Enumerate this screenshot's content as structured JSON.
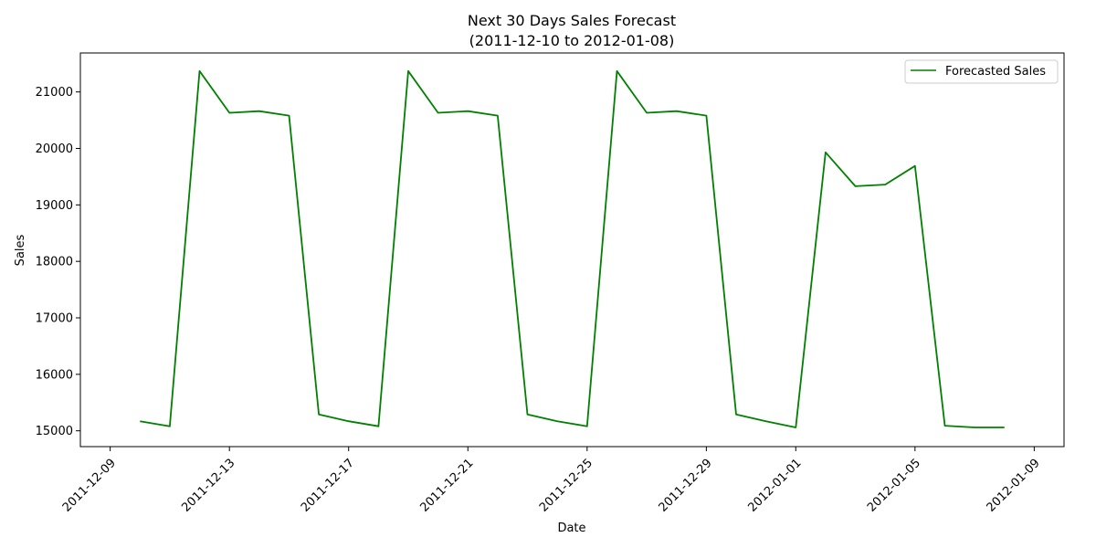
{
  "chart_data": {
    "type": "line",
    "title": "Next 30 Days Sales Forecast",
    "subtitle": "(2011-12-10 to 2012-01-08)",
    "xlabel": "Date",
    "ylabel": "Sales",
    "x_type": "date",
    "xlim": [
      "2011-12-08",
      "2012-01-10"
    ],
    "ylim": [
      14720,
      21690
    ],
    "x_ticks": [
      "2011-12-09",
      "2011-12-13",
      "2011-12-17",
      "2011-12-21",
      "2011-12-25",
      "2011-12-29",
      "2012-01-01",
      "2012-01-05",
      "2012-01-09"
    ],
    "y_ticks": [
      15000,
      16000,
      17000,
      18000,
      19000,
      20000,
      21000
    ],
    "grid": false,
    "legend_position": "top-right",
    "series": [
      {
        "name": "Forecasted Sales",
        "color": "#008000",
        "x": [
          "2011-12-10",
          "2011-12-11",
          "2011-12-12",
          "2011-12-13",
          "2011-12-14",
          "2011-12-15",
          "2011-12-16",
          "2011-12-17",
          "2011-12-18",
          "2011-12-19",
          "2011-12-20",
          "2011-12-21",
          "2011-12-22",
          "2011-12-23",
          "2011-12-24",
          "2011-12-25",
          "2011-12-26",
          "2011-12-27",
          "2011-12-28",
          "2011-12-29",
          "2011-12-30",
          "2011-12-31",
          "2012-01-01",
          "2012-01-02",
          "2012-01-03",
          "2012-01-04",
          "2012-01-05",
          "2012-01-06",
          "2012-01-07",
          "2012-01-08"
        ],
        "values": [
          15170,
          15080,
          21370,
          20630,
          20660,
          20580,
          15290,
          15170,
          15080,
          21370,
          20630,
          20660,
          20580,
          15290,
          15170,
          15080,
          21370,
          20630,
          20660,
          20580,
          15290,
          15170,
          15060,
          19930,
          19330,
          19360,
          19690,
          15090,
          15060,
          15060
        ]
      }
    ]
  }
}
